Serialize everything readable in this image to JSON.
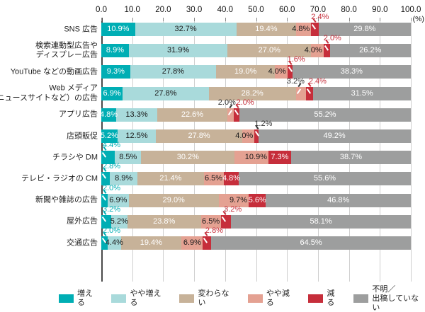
{
  "axis": {
    "tick_labels": [
      "0.0",
      "10.0",
      "20.0",
      "30.0",
      "40.0",
      "50.0",
      "60.0",
      "70.0",
      "80.0",
      "90.0",
      "100.0"
    ],
    "unit_label": "(%)"
  },
  "palette": {
    "series_colors": [
      "#00AEB4",
      "#A9DADB",
      "#C7B299",
      "#E4A192",
      "#C62E3B",
      "#9D9E9E"
    ],
    "inbar_text_colors": [
      "#ffffff",
      "#1a1a1a",
      "#ffffff",
      "#1a1a1a",
      "#ffffff",
      "#ffffff"
    ],
    "above_label_colors": {
      "teal": "#00AEB4",
      "black": "#333333",
      "red": "#C62E3B"
    },
    "gridline": "#cfcfcf",
    "axis_line": "#4a4a4a"
  },
  "legend": {
    "items": [
      {
        "key": "increase",
        "label_lines": [
          "増える"
        ],
        "color": "#00AEB4"
      },
      {
        "key": "somewhat-increase",
        "label_lines": [
          "やや増える"
        ],
        "color": "#A9DADB"
      },
      {
        "key": "no-change",
        "label_lines": [
          "変わらない"
        ],
        "color": "#C7B299"
      },
      {
        "key": "somewhat-decrease",
        "label_lines": [
          "やや減る"
        ],
        "color": "#E4A192"
      },
      {
        "key": "decrease",
        "label_lines": [
          "減る"
        ],
        "color": "#C62E3B"
      },
      {
        "key": "unknown",
        "label_lines": [
          "不明／",
          "出稿していない"
        ],
        "color": "#9D9E9E"
      }
    ]
  },
  "chart_data": {
    "type": "bar",
    "stacked": true,
    "orientation": "horizontal",
    "value_unit": "%",
    "xlim": [
      0,
      100
    ],
    "x_ticks": [
      0,
      10,
      20,
      30,
      40,
      50,
      60,
      70,
      80,
      90,
      100
    ],
    "grid": true,
    "legend_position": "bottom",
    "series_names": [
      "増える",
      "やや増える",
      "変わらない",
      "やや減る",
      "減る",
      "不明／出稿していない"
    ],
    "rows": [
      {
        "category_lines": [
          "SNS 広告"
        ],
        "values": [
          10.9,
          32.7,
          19.4,
          4.8,
          2.4,
          29.8
        ],
        "above_labels": [
          {
            "segment": 4,
            "color": "red"
          }
        ]
      },
      {
        "category_lines": [
          "検索連動型広告や",
          "ディスプレー広告"
        ],
        "values": [
          8.9,
          31.9,
          27.0,
          4.0,
          2.0,
          26.2
        ],
        "above_labels": [
          {
            "segment": 4,
            "color": "red"
          }
        ]
      },
      {
        "category_lines": [
          "YouTube などの動画広告"
        ],
        "values": [
          9.3,
          27.8,
          19.0,
          4.0,
          1.6,
          38.3
        ],
        "above_labels": [
          {
            "segment": 4,
            "color": "red"
          }
        ]
      },
      {
        "category_lines": [
          "Web メディア",
          "（ニュースサイトなど）の広告"
        ],
        "values": [
          6.9,
          27.8,
          28.2,
          3.2,
          2.4,
          31.5
        ],
        "above_labels": [
          {
            "segment": 3,
            "color": "black"
          },
          {
            "segment": 4,
            "color": "red"
          }
        ]
      },
      {
        "category_lines": [
          "アプリ広告"
        ],
        "values": [
          4.8,
          13.3,
          22.6,
          2.0,
          2.0,
          55.2
        ],
        "above_labels": [
          {
            "segment": 3,
            "color": "black"
          },
          {
            "segment": 4,
            "color": "red"
          }
        ]
      },
      {
        "category_lines": [
          "店頭販促"
        ],
        "values": [
          5.2,
          12.5,
          27.8,
          4.0,
          1.2,
          49.2
        ],
        "above_labels": [
          {
            "segment": 4,
            "color": "black"
          }
        ]
      },
      {
        "category_lines": [
          "チラシや DM"
        ],
        "values": [
          4.4,
          8.5,
          30.2,
          10.9,
          7.3,
          38.7
        ],
        "above_labels": [
          {
            "segment": 0,
            "color": "teal"
          }
        ]
      },
      {
        "category_lines": [
          "テレビ・ラジオの CM"
        ],
        "values": [
          2.8,
          8.9,
          21.4,
          6.5,
          4.8,
          55.6
        ],
        "above_labels": [
          {
            "segment": 0,
            "color": "teal"
          }
        ]
      },
      {
        "category_lines": [
          "新聞や雑誌の広告"
        ],
        "values": [
          2.0,
          6.9,
          29.0,
          9.7,
          5.6,
          46.8
        ],
        "above_labels": [
          {
            "segment": 0,
            "color": "teal"
          }
        ]
      },
      {
        "category_lines": [
          "屋外広告"
        ],
        "values": [
          3.2,
          5.2,
          23.8,
          6.5,
          3.2,
          58.1
        ],
        "above_labels": [
          {
            "segment": 0,
            "color": "teal"
          },
          {
            "segment": 4,
            "color": "red"
          }
        ]
      },
      {
        "category_lines": [
          "交通広告"
        ],
        "values": [
          2.0,
          4.4,
          19.4,
          6.9,
          2.8,
          64.5
        ],
        "above_labels": [
          {
            "segment": 0,
            "color": "teal"
          },
          {
            "segment": 4,
            "color": "red"
          }
        ]
      }
    ]
  }
}
